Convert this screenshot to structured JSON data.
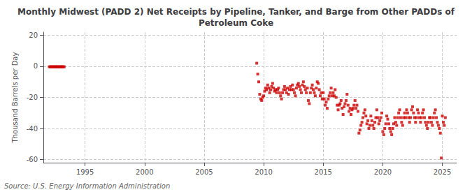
{
  "chart_data": {
    "type": "scatter",
    "title": "Monthly Midwest (PADD 2) Net Receipts by Pipeline, Tanker, and Barge from Other PADDs of\nPetroleum Coke",
    "ylabel": "Thousand Barrels per Day",
    "annotations": [
      "Source: U.S. Energy Information Administration"
    ],
    "color": "#cc0000",
    "marker": "square",
    "grid": true,
    "xlim": [
      1991.5,
      2026.2
    ],
    "ylim": [
      -62,
      22
    ],
    "xticks": [
      1995,
      2000,
      2005,
      2010,
      2015,
      2020,
      2025
    ],
    "yticks": [
      -60,
      -40,
      -20,
      0,
      20
    ],
    "x": [
      1992.0,
      1992.083,
      1992.167,
      1992.25,
      1992.333,
      1992.417,
      1992.5,
      1992.583,
      1992.667,
      1992.75,
      1992.833,
      1992.917,
      1993.0,
      1993.083,
      1993.167,
      1993.25,
      2009.417,
      2009.5,
      2009.583,
      2009.667,
      2009.75,
      2009.833,
      2009.917,
      2010.0,
      2010.083,
      2010.167,
      2010.25,
      2010.333,
      2010.417,
      2010.5,
      2010.583,
      2010.667,
      2010.75,
      2010.833,
      2010.917,
      2011.0,
      2011.083,
      2011.167,
      2011.25,
      2011.333,
      2011.417,
      2011.5,
      2011.583,
      2011.667,
      2011.75,
      2011.833,
      2011.917,
      2012.0,
      2012.083,
      2012.167,
      2012.25,
      2012.333,
      2012.417,
      2012.5,
      2012.583,
      2012.667,
      2012.75,
      2012.833,
      2012.917,
      2013.0,
      2013.083,
      2013.167,
      2013.25,
      2013.333,
      2013.417,
      2013.5,
      2013.583,
      2013.667,
      2013.75,
      2013.833,
      2013.917,
      2014.0,
      2014.083,
      2014.167,
      2014.25,
      2014.333,
      2014.417,
      2014.5,
      2014.583,
      2014.667,
      2014.75,
      2014.833,
      2014.917,
      2015.0,
      2015.083,
      2015.167,
      2015.25,
      2015.333,
      2015.417,
      2015.5,
      2015.583,
      2015.667,
      2015.75,
      2015.833,
      2015.917,
      2016.0,
      2016.083,
      2016.167,
      2016.25,
      2016.333,
      2016.417,
      2016.5,
      2016.583,
      2016.667,
      2016.75,
      2016.833,
      2016.917,
      2017.0,
      2017.083,
      2017.167,
      2017.25,
      2017.333,
      2017.417,
      2017.5,
      2017.583,
      2017.667,
      2017.75,
      2017.833,
      2017.917,
      2018.0,
      2018.083,
      2018.167,
      2018.25,
      2018.333,
      2018.417,
      2018.5,
      2018.583,
      2018.667,
      2018.75,
      2018.833,
      2018.917,
      2019.0,
      2019.083,
      2019.167,
      2019.25,
      2019.333,
      2019.417,
      2019.5,
      2019.583,
      2019.667,
      2019.75,
      2019.833,
      2019.917,
      2020.0,
      2020.083,
      2020.167,
      2020.25,
      2020.333,
      2020.417,
      2020.5,
      2020.583,
      2020.667,
      2020.75,
      2020.833,
      2020.917,
      2021.0,
      2021.083,
      2021.167,
      2021.25,
      2021.333,
      2021.417,
      2021.5,
      2021.583,
      2021.667,
      2021.75,
      2021.833,
      2021.917,
      2022.0,
      2022.083,
      2022.167,
      2022.25,
      2022.333,
      2022.417,
      2022.5,
      2022.583,
      2022.667,
      2022.75,
      2022.833,
      2022.917,
      2023.0,
      2023.083,
      2023.167,
      2023.25,
      2023.333,
      2023.417,
      2023.5,
      2023.583,
      2023.667,
      2023.75,
      2023.833,
      2023.917,
      2024.0,
      2024.083,
      2024.167,
      2024.25,
      2024.333,
      2024.417,
      2024.5,
      2024.583,
      2024.667,
      2024.75,
      2024.833,
      2024.917,
      2025.0,
      2025.083,
      2025.167,
      2025.25
    ],
    "values": [
      -0.3,
      -0.3,
      -0.3,
      -0.3,
      -0.3,
      -0.3,
      -0.3,
      -0.3,
      -0.3,
      -0.3,
      -0.3,
      -0.3,
      -0.3,
      -0.3,
      -0.3,
      -0.3,
      2,
      -5,
      -10,
      -18,
      -21,
      -22,
      -20,
      -19,
      -16,
      -14,
      -15,
      -12,
      -14,
      -17,
      -15,
      -13,
      -11,
      -14,
      -16,
      -15,
      -17,
      -15,
      -14,
      -17,
      -19,
      -21,
      -17,
      -15,
      -13,
      -15,
      -17,
      -14,
      -18,
      -15,
      -13,
      -15,
      -12,
      -15,
      -17,
      -19,
      -14,
      -12,
      -11,
      -13,
      -15,
      -17,
      -12,
      -10,
      -13,
      -15,
      -17,
      -14,
      -22,
      -24,
      -17,
      -14,
      -12,
      -15,
      -17,
      -19,
      -14,
      -10,
      -11,
      -15,
      -19,
      -17,
      -21,
      -17,
      -21,
      -25,
      -23,
      -27,
      -21,
      -19,
      -17,
      -14,
      -19,
      -17,
      -19,
      -15,
      -20,
      -25,
      -28,
      -25,
      -24,
      -22,
      -27,
      -31,
      -26,
      -24,
      -22,
      -18,
      -25,
      -29,
      -27,
      -31,
      -28,
      -27,
      -25,
      -22,
      -27,
      -25,
      -29,
      -43,
      -41,
      -38,
      -36,
      -33,
      -30,
      -28,
      -32,
      -37,
      -35,
      -40,
      -38,
      -32,
      -35,
      -38,
      -40,
      -36,
      -33,
      -28,
      -33,
      -37,
      -35,
      -33,
      -30,
      -42,
      -44,
      -40,
      -37,
      -32,
      -34,
      -37,
      -40,
      -42,
      -44,
      -40,
      -37,
      -33,
      -36,
      -38,
      -33,
      -30,
      -28,
      -33,
      -36,
      -38,
      -33,
      -30,
      -33,
      -28,
      -30,
      -33,
      -36,
      -33,
      -28,
      -26,
      -30,
      -33,
      -36,
      -33,
      -28,
      -30,
      -33,
      -36,
      -33,
      -30,
      -28,
      -33,
      -36,
      -38,
      -40,
      -36,
      -33,
      -33,
      -36,
      -38,
      -33,
      -30,
      -28,
      -33,
      -36,
      -38,
      -40,
      -43,
      -59,
      -32,
      -36,
      -38,
      -33
    ]
  }
}
